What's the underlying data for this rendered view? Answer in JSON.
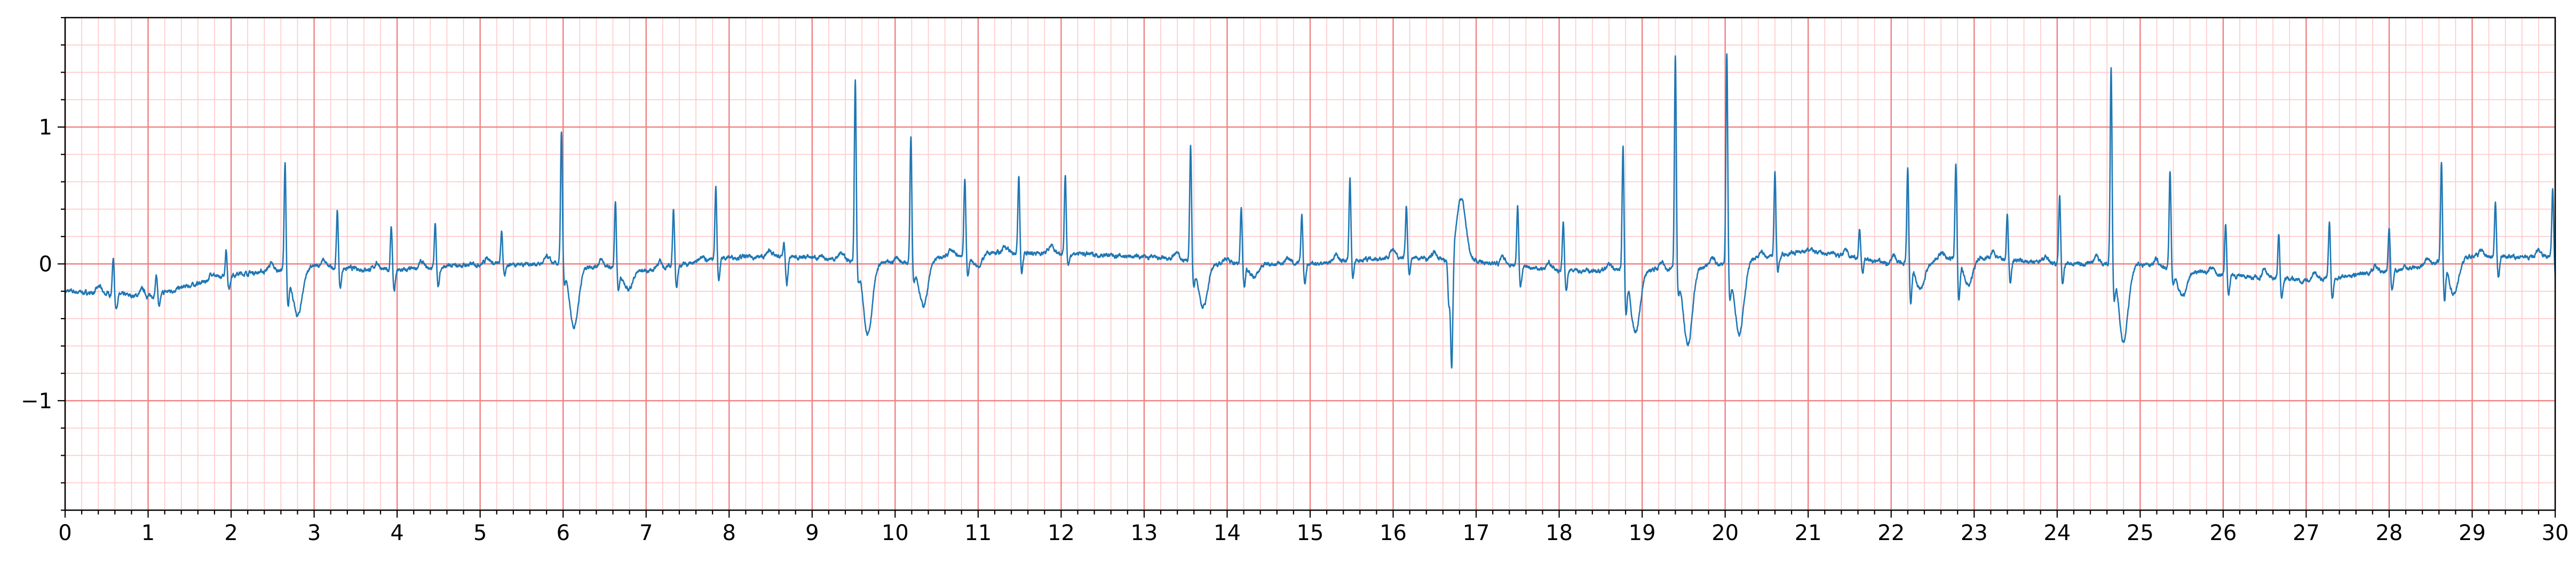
{
  "chart_data": {
    "type": "line",
    "title": "",
    "xlabel": "",
    "ylabel": "",
    "xlim": [
      0,
      30
    ],
    "ylim": [
      -1.8,
      1.8
    ],
    "x_ticks": [
      0,
      1,
      2,
      3,
      4,
      5,
      6,
      7,
      8,
      9,
      10,
      11,
      12,
      13,
      14,
      15,
      16,
      17,
      18,
      19,
      20,
      21,
      22,
      23,
      24,
      25,
      26,
      27,
      28,
      29,
      30
    ],
    "x_tick_labels": [
      "0",
      "1",
      "2",
      "3",
      "4",
      "5",
      "6",
      "7",
      "8",
      "9",
      "10",
      "11",
      "12",
      "13",
      "14",
      "15",
      "16",
      "17",
      "18",
      "19",
      "20",
      "21",
      "22",
      "23",
      "24",
      "25",
      "26",
      "27",
      "28",
      "29",
      "30"
    ],
    "y_ticks": [
      -1,
      0,
      1
    ],
    "y_tick_labels": [
      "−1",
      "0",
      "1"
    ],
    "grid": "on",
    "grid_major_x": 1,
    "grid_minor_x": 0.2,
    "grid_major_y": 1,
    "grid_minor_y": 0.2,
    "colors": {
      "line": "#1f77b4",
      "major_grid": "#f08080",
      "minor_grid": "#ffc8c8",
      "axis": "#000000"
    },
    "baseline": [
      [
        0,
        -0.2
      ],
      [
        1.0,
        -0.24
      ],
      [
        2.0,
        -0.08
      ],
      [
        3.0,
        -0.02
      ],
      [
        4.0,
        -0.05
      ],
      [
        5.0,
        0.0
      ],
      [
        6.0,
        0.0
      ],
      [
        7.0,
        -0.05
      ],
      [
        8.0,
        0.05
      ],
      [
        9.0,
        0.05
      ],
      [
        10.0,
        0.0
      ],
      [
        11.0,
        0.08
      ],
      [
        12.0,
        0.08
      ],
      [
        13.0,
        0.05
      ],
      [
        14.0,
        0.0
      ],
      [
        15.0,
        0.0
      ],
      [
        16.0,
        0.05
      ],
      [
        17.0,
        0.02
      ],
      [
        18.0,
        -0.05
      ],
      [
        19.0,
        -0.05
      ],
      [
        20.0,
        0.0
      ],
      [
        21.0,
        0.1
      ],
      [
        22.0,
        0.0
      ],
      [
        23.0,
        0.05
      ],
      [
        24.0,
        0.0
      ],
      [
        25.0,
        0.0
      ],
      [
        26.0,
        -0.08
      ],
      [
        27.0,
        -0.12
      ],
      [
        28.0,
        -0.05
      ],
      [
        29.0,
        0.05
      ],
      [
        30.0,
        0.05
      ]
    ],
    "beats": [
      {
        "t": 0.58,
        "r": 0.27,
        "s": -0.1,
        "tw": 0.0
      },
      {
        "t": 1.1,
        "r": 0.15,
        "s": -0.1,
        "tw": 0.0
      },
      {
        "t": 1.94,
        "r": 0.2,
        "s": -0.1,
        "tw": 0.0
      },
      {
        "t": 2.65,
        "r": 0.8,
        "s": -0.25,
        "tw": -0.35
      },
      {
        "t": 3.28,
        "r": 0.42,
        "s": -0.15,
        "tw": 0.0
      },
      {
        "t": 3.93,
        "r": 0.33,
        "s": -0.15,
        "tw": 0.0
      },
      {
        "t": 4.46,
        "r": 0.33,
        "s": -0.15,
        "tw": 0.0
      },
      {
        "t": 5.26,
        "r": 0.25,
        "s": -0.1,
        "tw": 0.0
      },
      {
        "t": 5.98,
        "r": 0.97,
        "s": -0.1,
        "tw": -0.45
      },
      {
        "t": 6.63,
        "r": 0.48,
        "s": -0.15,
        "tw": -0.15
      },
      {
        "t": 7.33,
        "r": 0.43,
        "s": -0.15,
        "tw": 0.0
      },
      {
        "t": 7.84,
        "r": 0.53,
        "s": -0.15,
        "tw": 0.0
      },
      {
        "t": 8.66,
        "r": 0.1,
        "s": -0.2,
        "tw": 0.0
      },
      {
        "t": 9.52,
        "r": 1.33,
        "s": -0.1,
        "tw": -0.52
      },
      {
        "t": 10.19,
        "r": 0.93,
        "s": -0.1,
        "tw": -0.33
      },
      {
        "t": 10.84,
        "r": 0.57,
        "s": -0.15,
        "tw": -0.1
      },
      {
        "t": 11.49,
        "r": 0.57,
        "s": -0.15,
        "tw": 0.0
      },
      {
        "t": 12.05,
        "r": 0.58,
        "s": -0.1,
        "tw": 0.0
      },
      {
        "t": 13.56,
        "r": 0.85,
        "s": -0.15,
        "tw": -0.33
      },
      {
        "t": 14.17,
        "r": 0.43,
        "s": -0.15,
        "tw": -0.1
      },
      {
        "t": 14.9,
        "r": 0.37,
        "s": -0.15,
        "tw": 0.0
      },
      {
        "t": 15.48,
        "r": 0.61,
        "s": -0.12,
        "tw": 0.0
      },
      {
        "t": 16.16,
        "r": 0.37,
        "s": -0.12,
        "tw": 0.0
      },
      {
        "t": 16.67,
        "r": -0.3,
        "s": -0.83,
        "tw": 0.46
      },
      {
        "t": 17.5,
        "r": 0.45,
        "s": -0.15,
        "tw": 0.0
      },
      {
        "t": 18.05,
        "r": 0.37,
        "s": -0.15,
        "tw": 0.0
      },
      {
        "t": 18.77,
        "r": 0.93,
        "s": -0.28,
        "tw": -0.45
      },
      {
        "t": 19.4,
        "r": 1.57,
        "s": -0.12,
        "tw": -0.57
      },
      {
        "t": 20.02,
        "r": 1.57,
        "s": -0.2,
        "tw": -0.53
      },
      {
        "t": 20.6,
        "r": 0.62,
        "s": -0.12,
        "tw": 0.0
      },
      {
        "t": 21.62,
        "r": 0.22,
        "s": -0.1,
        "tw": 0.0
      },
      {
        "t": 22.2,
        "r": 0.71,
        "s": -0.28,
        "tw": -0.2
      },
      {
        "t": 22.78,
        "r": 0.72,
        "s": -0.28,
        "tw": -0.2
      },
      {
        "t": 23.4,
        "r": 0.33,
        "s": -0.15,
        "tw": 0.0
      },
      {
        "t": 24.03,
        "r": 0.5,
        "s": -0.15,
        "tw": 0.0
      },
      {
        "t": 24.65,
        "r": 1.45,
        "s": -0.2,
        "tw": -0.57
      },
      {
        "t": 25.36,
        "r": 0.73,
        "s": -0.1,
        "tw": -0.2
      },
      {
        "t": 26.03,
        "r": 0.38,
        "s": -0.15,
        "tw": 0.0
      },
      {
        "t": 26.67,
        "r": 0.33,
        "s": -0.15,
        "tw": 0.0
      },
      {
        "t": 27.28,
        "r": 0.41,
        "s": -0.15,
        "tw": 0.0
      },
      {
        "t": 28.0,
        "r": 0.33,
        "s": -0.15,
        "tw": 0.0
      },
      {
        "t": 28.63,
        "r": 0.75,
        "s": -0.25,
        "tw": -0.25
      },
      {
        "t": 29.28,
        "r": 0.41,
        "s": -0.15,
        "tw": 0.0
      },
      {
        "t": 29.97,
        "r": 0.5,
        "s": -0.15,
        "tw": 0.0
      }
    ]
  }
}
